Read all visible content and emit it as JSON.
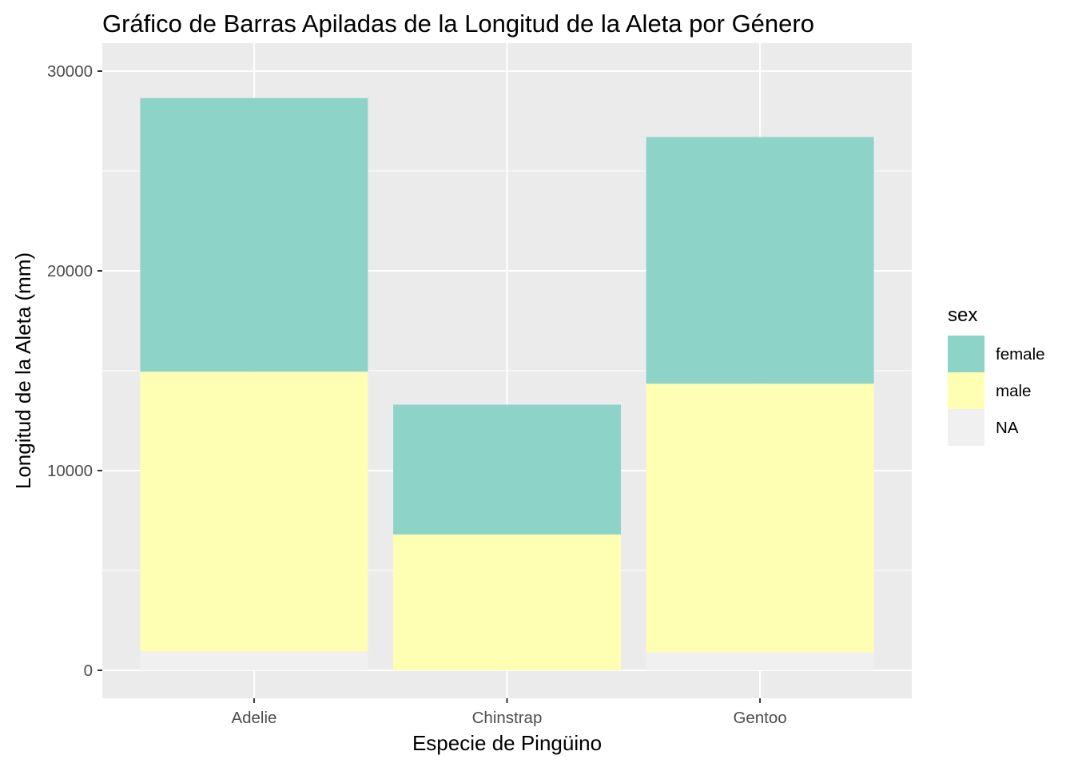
{
  "chart_data": {
    "type": "bar",
    "stacked": true,
    "title": "Gráfico de Barras Apiladas de la Longitud de la Aleta por Género",
    "xlabel": "Especie de Pingüino",
    "ylabel": "Longitud de la Aleta (mm)",
    "categories": [
      "Adelie",
      "Chinstrap",
      "Gentoo"
    ],
    "ylim": [
      -1400,
      30000
    ],
    "yticks": [
      0,
      10000,
      20000,
      30000
    ],
    "grid": true,
    "legend": {
      "title": "sex",
      "position": "right",
      "entries": [
        "female",
        "male",
        "NA"
      ]
    },
    "series": [
      {
        "name": "NA",
        "color": "#f0f0f0",
        "values": [
          950,
          0,
          900
        ]
      },
      {
        "name": "male",
        "color": "#ffffb3",
        "values": [
          14000,
          6800,
          13450
        ]
      },
      {
        "name": "female",
        "color": "#8dd3c7",
        "values": [
          13700,
          6500,
          12350
        ]
      }
    ]
  }
}
